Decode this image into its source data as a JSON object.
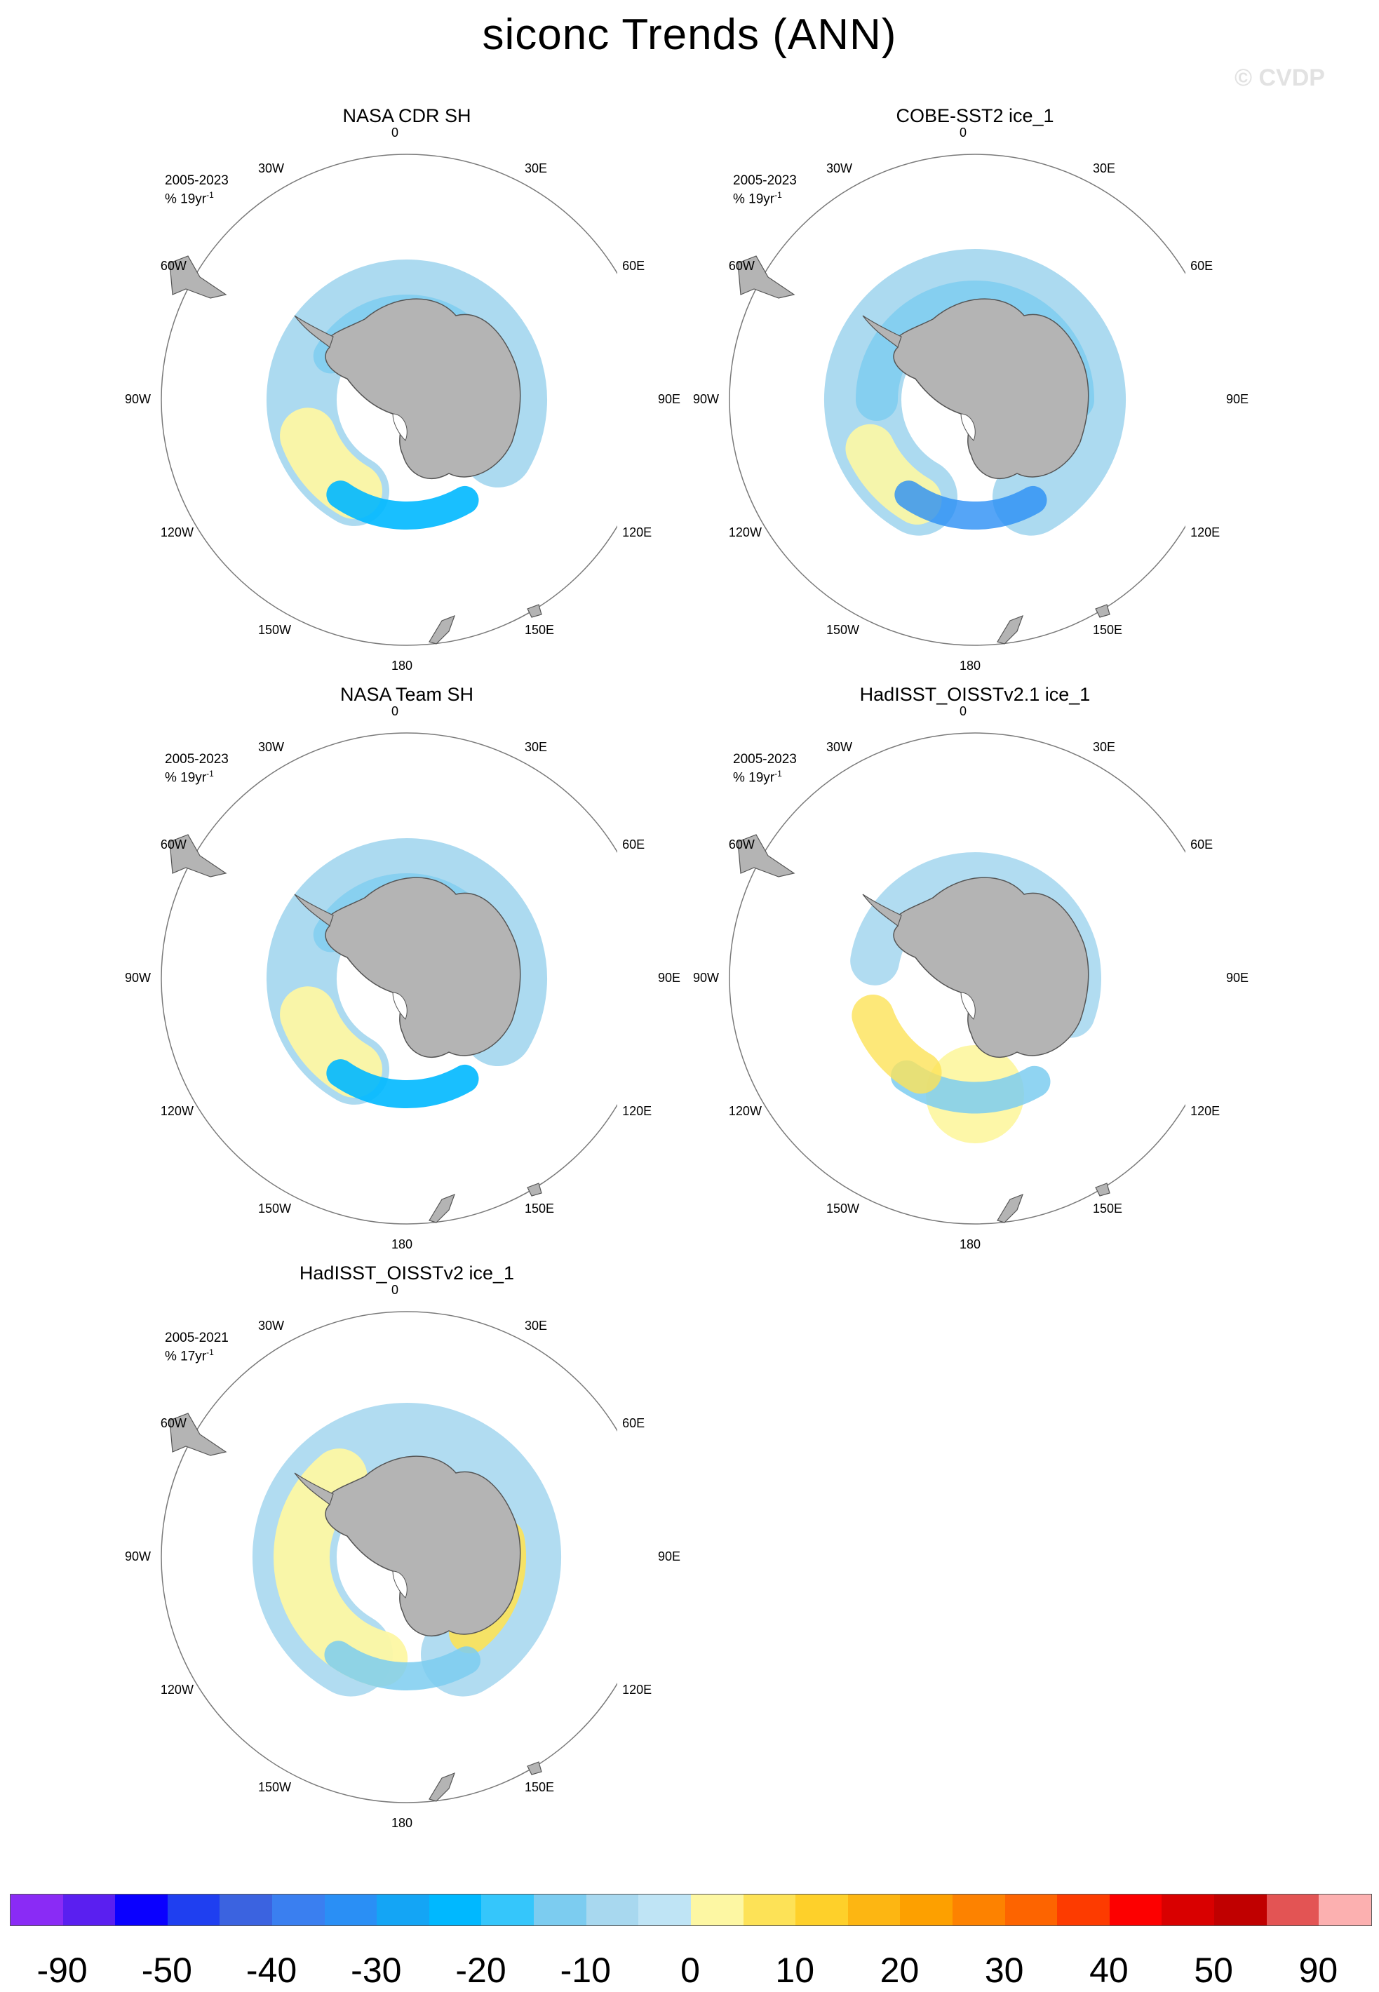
{
  "title": "siconc Trends (ANN)",
  "watermark": "© CVDP",
  "longitude_labels": [
    "0",
    "30E",
    "60E",
    "90E",
    "120E",
    "150E",
    "180",
    "150W",
    "120W",
    "90W",
    "60W",
    "30W"
  ],
  "panels": [
    {
      "title": "NASA CDR SH",
      "period": "2005-2023",
      "units": "% 19yr",
      "units_exp": "-1",
      "pattern": "cdr"
    },
    {
      "title": "COBE-SST2 ice_1",
      "period": "2005-2023",
      "units": "% 19yr",
      "units_exp": "-1",
      "pattern": "cobe"
    },
    {
      "title": "NASA Team SH",
      "period": "2005-2023",
      "units": "% 19yr",
      "units_exp": "-1",
      "pattern": "team"
    },
    {
      "title": "HadISST_OISSTv2.1 ice_1",
      "period": "2005-2023",
      "units": "% 19yr",
      "units_exp": "-1",
      "pattern": "had21"
    },
    {
      "title": "HadISST_OISSTv2 ice_1",
      "period": "2005-2021",
      "units": "% 17yr",
      "units_exp": "-1",
      "pattern": "had2"
    }
  ],
  "colorbar": {
    "colors": [
      "#8a2bf5",
      "#5a1ff0",
      "#0a00ff",
      "#1f3ff0",
      "#3b63e0",
      "#3a7ff0",
      "#2a8ff5",
      "#14a5f5",
      "#00b8ff",
      "#35c6fb",
      "#7cccf0",
      "#a8d8ef",
      "#bfe4f5",
      "#fdf7a3",
      "#fde257",
      "#fed02a",
      "#fdb612",
      "#fda000",
      "#fd8200",
      "#fd6400",
      "#fd3b00",
      "#fd0000",
      "#d90000",
      "#c00000",
      "#e35454",
      "#fcb0b0"
    ],
    "tick_labels": [
      "-90",
      "-50",
      "-40",
      "-30",
      "-20",
      "-10",
      "0",
      "10",
      "20",
      "30",
      "40",
      "50",
      "90"
    ]
  }
}
